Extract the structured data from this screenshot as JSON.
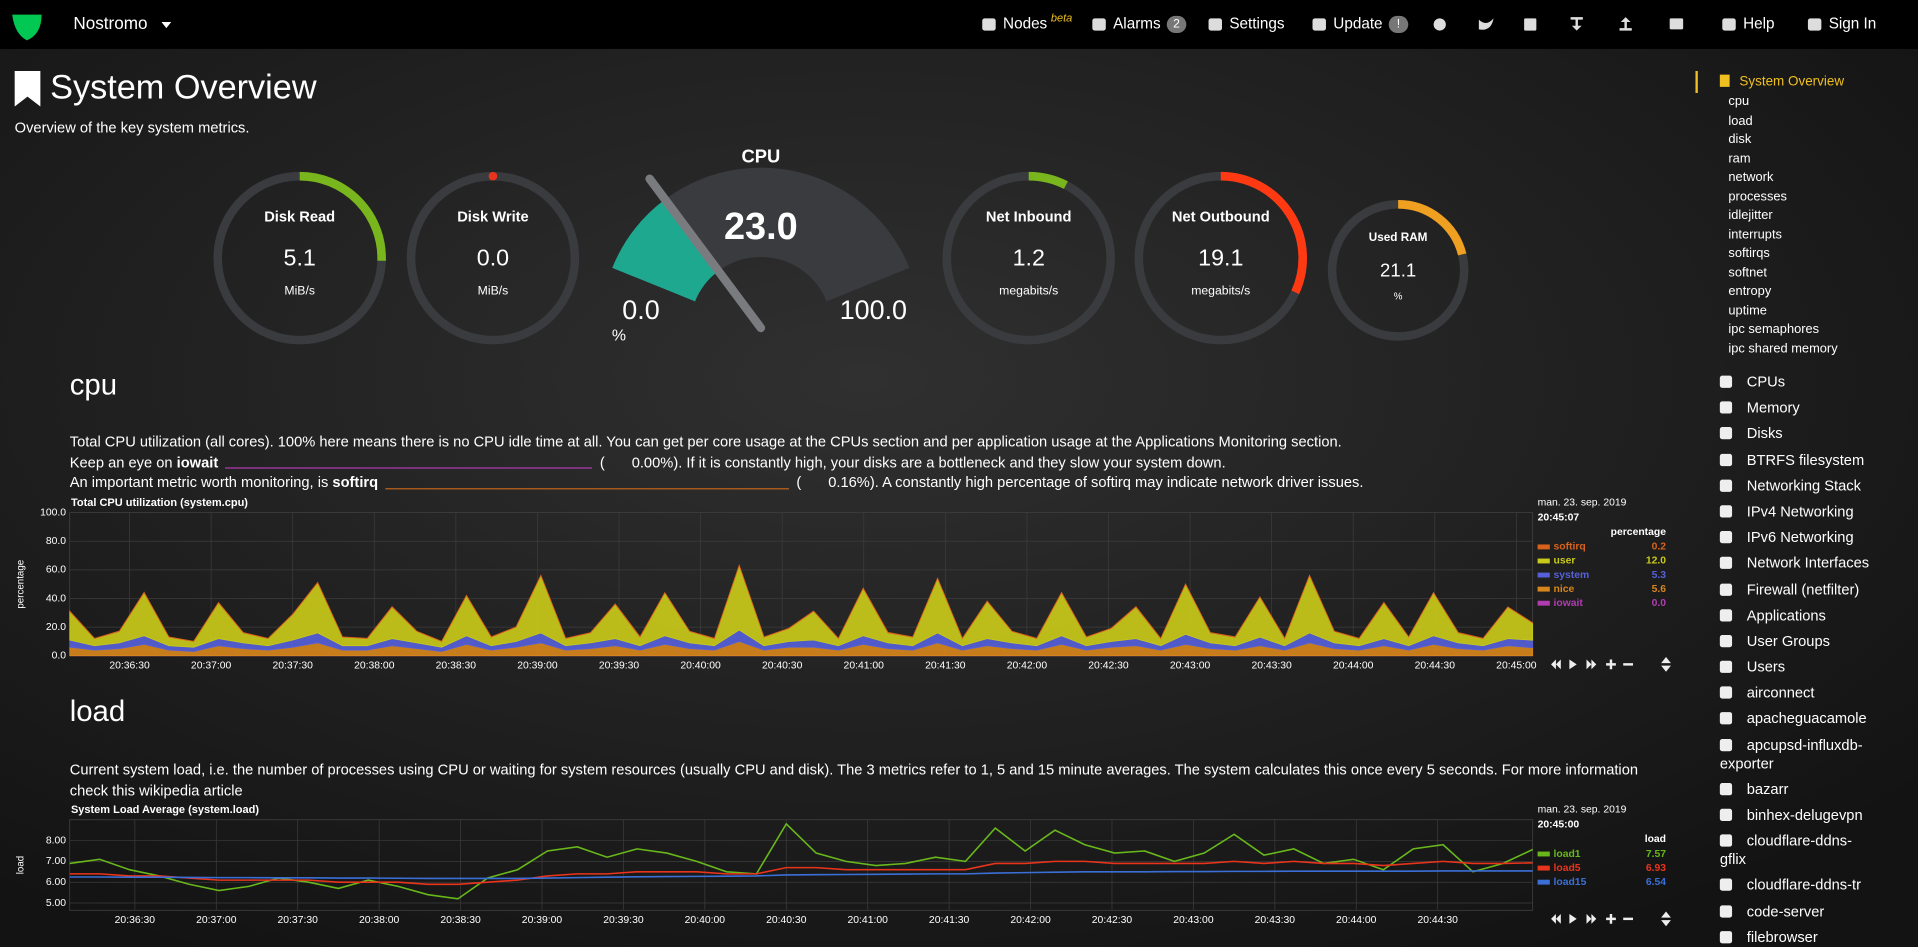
{
  "header": {
    "brand": "Nostromo",
    "nav": [
      {
        "label": "Nodes",
        "badge": "beta"
      },
      {
        "label": "Alarms",
        "badge": "2"
      },
      {
        "label": "Settings"
      },
      {
        "label": "Update",
        "badge": "!"
      },
      {
        "label": "Help"
      },
      {
        "label": "Sign In"
      }
    ]
  },
  "overview": {
    "title": "System Overview",
    "subtitle": "Overview of the key system metrics.",
    "gauges": [
      {
        "title": "Disk Read",
        "value": 5.1,
        "unit": "MiB/s",
        "range": [
          0,
          20
        ],
        "color": "#79b51c"
      },
      {
        "title": "Disk Write",
        "value": 0,
        "value_label": "0.0",
        "unit": "MiB/s",
        "range": [
          0,
          20
        ],
        "color": "#e8341c"
      },
      {
        "title": "Net Inbound",
        "value": 1.2,
        "unit": "megabits/s",
        "range": [
          0,
          16
        ],
        "color": "#79b51c"
      },
      {
        "title": "Net Outbound",
        "value": 19.1,
        "unit": "megabits/s",
        "range": [
          0,
          60
        ],
        "color": "#ff3a12"
      },
      {
        "title": "Used RAM",
        "value": 21.1,
        "unit": "%",
        "range": [
          0,
          100
        ],
        "color": "#f0a020"
      }
    ],
    "cpu_gauge": {
      "title": "CPU",
      "value": 23,
      "value_label": "23.0",
      "unit": "%",
      "range": [
        0,
        100
      ],
      "range_labels": [
        "0.0",
        "100.0"
      ],
      "color": "#1fa890"
    }
  },
  "sections": [
    {
      "title": "cpu",
      "description": {
        "text": "Total CPU utilization (all cores). 100% here means there is no CPU idle time at all. You can get per core usage at the CPUs section and per application usage at the Applications Monitoring section.",
        "iowait": {
          "before": "Keep an eye on ",
          "metric": "iowait",
          "open": "(",
          "value": "0.00%",
          "after": "). If it is constantly high, your disks are a bottleneck and they slow your system down."
        },
        "softirq": {
          "before": "An important metric worth monitoring, is ",
          "metric": "softirq",
          "open": "(",
          "value": "0.16%",
          "after": "). A constantly high percentage of softirq may indicate network driver issues."
        }
      },
      "chart": {
        "type": "area",
        "stacked": true,
        "title": "Total CPU utilization (system.cpu)",
        "ylabel": "percentage",
        "grid": true,
        "ylim": [
          0,
          100
        ],
        "yticks": [
          {
            "value": 0,
            "label": "0.0"
          },
          {
            "value": 20,
            "label": "20.0"
          },
          {
            "value": 40,
            "label": "40.0"
          },
          {
            "value": 60,
            "label": "60.0"
          },
          {
            "value": 80,
            "label": "80.0"
          },
          {
            "value": 100,
            "label": "100.0"
          }
        ],
        "xlim": [
          "20:36:08",
          "20:45:06"
        ],
        "xticks": [
          "20:36:30",
          "20:37:00",
          "20:37:30",
          "20:38:00",
          "20:38:30",
          "20:39:00",
          "20:39:30",
          "20:40:00",
          "20:40:30",
          "20:41:00",
          "20:41:30",
          "20:42:00",
          "20:42:30",
          "20:43:00",
          "20:43:30",
          "20:44:00",
          "20:44:30",
          "20:45:00"
        ],
        "legend": {
          "date": "man. 23. sep. 2019",
          "time": "20:45:07",
          "unit": "percentage"
        },
        "series": [
          {
            "name": "softirq",
            "color": "#d8621c",
            "current": 0.2,
            "values": [
              0.3,
              0.2,
              0.3,
              0.4,
              0.2,
              0.2,
              0.3,
              0.3,
              0.2,
              0.3,
              0.3,
              0.2,
              0.3,
              0.4,
              0.2,
              0.2,
              0.3,
              0.3,
              0.2,
              0.3,
              0.3,
              0.2,
              0.3,
              0.4,
              0.2,
              0.2,
              0.3,
              0.3,
              0.2,
              0.3,
              0.3,
              0.2,
              0.3,
              0.4,
              0.2,
              0.2,
              0.3,
              0.3,
              0.2,
              0.3,
              0.3,
              0.2,
              0.3,
              0.4,
              0.2,
              0.2,
              0.3,
              0.3,
              0.2,
              0.3,
              0.3,
              0.2,
              0.3,
              0.4,
              0.2,
              0.2,
              0.3,
              0.3,
              0.2,
              0.2
            ]
          },
          {
            "name": "user",
            "color": "#c9c91a",
            "current": 12,
            "current_label": "12.0",
            "values": [
              20,
              5,
              8,
              30,
              6,
              4,
              25,
              7,
              5,
              18,
              35,
              6,
              5,
              22,
              8,
              4,
              28,
              6,
              10,
              40,
              5,
              7,
              24,
              6,
              30,
              8,
              5,
              45,
              6,
              9,
              20,
              5,
              33,
              7,
              6,
              38,
              5,
              26,
              8,
              5,
              30,
              6,
              9,
              22,
              5,
              35,
              7,
              6,
              28,
              5,
              40,
              8,
              5,
              25,
              6,
              30,
              7,
              5,
              22,
              12
            ]
          },
          {
            "name": "system",
            "color": "#5560d8",
            "current": 5.3,
            "values": [
              5,
              3,
              4,
              6,
              3,
              3,
              5,
              4,
              3,
              5,
              7,
              3,
              3,
              5,
              4,
              3,
              6,
              3,
              4,
              7,
              3,
              4,
              5,
              3,
              6,
              4,
              3,
              8,
              3,
              4,
              5,
              3,
              6,
              4,
              3,
              7,
              3,
              5,
              4,
              3,
              6,
              3,
              4,
              5,
              3,
              7,
              4,
              3,
              6,
              3,
              7,
              4,
              3,
              5,
              3,
              6,
              4,
              3,
              5,
              5.3
            ]
          },
          {
            "name": "nice",
            "color": "#d6861c",
            "current": 5.6,
            "values": [
              6,
              4,
              5,
              8,
              4,
              3,
              7,
              5,
              4,
              6,
              9,
              4,
              4,
              7,
              5,
              3,
              8,
              4,
              6,
              9,
              4,
              5,
              7,
              4,
              8,
              5,
              4,
              10,
              4,
              6,
              6,
              4,
              8,
              5,
              4,
              9,
              4,
              7,
              5,
              4,
              8,
              4,
              6,
              7,
              4,
              8,
              5,
              4,
              7,
              4,
              9,
              5,
              4,
              7,
              4,
              8,
              5,
              4,
              7,
              5.6
            ]
          },
          {
            "name": "iowait",
            "color": "#b03cb0",
            "current": 0,
            "current_label": "0.0",
            "values": [
              0,
              0,
              0,
              0,
              0,
              0,
              0,
              0,
              0,
              0,
              0,
              0,
              0,
              0,
              0,
              0,
              0,
              0,
              0,
              0,
              0,
              0,
              0,
              0,
              0,
              0,
              0,
              0,
              0,
              0,
              0,
              0,
              0,
              0,
              0,
              0,
              0,
              0,
              0,
              0,
              0,
              0,
              0,
              0,
              0,
              0,
              0,
              0,
              0,
              0,
              0,
              0,
              0,
              0,
              0,
              0,
              0,
              0,
              0,
              0
            ]
          }
        ]
      }
    },
    {
      "title": "load",
      "description": {
        "text": "Current system load, i.e. the number of processes using CPU or waiting for system resources (usually CPU and disk). The 3 metrics refer to 1, 5 and 15 minute averages. The system calculates this once every 5 seconds. For more information check this",
        "link": "wikipedia article"
      },
      "chart": {
        "type": "line",
        "title": "System Load Average (system.load)",
        "ylabel": "load",
        "grid": true,
        "ylim": [
          4.65,
          9.0
        ],
        "yticks": [
          {
            "value": 5,
            "label": "5.00"
          },
          {
            "value": 6,
            "label": "6.00"
          },
          {
            "value": 7,
            "label": "7.00"
          },
          {
            "value": 8,
            "label": "8.00"
          }
        ],
        "xlim": [
          "20:36:06",
          "20:45:05"
        ],
        "xticks": [
          "20:36:30",
          "20:37:00",
          "20:37:30",
          "20:38:00",
          "20:38:30",
          "20:39:00",
          "20:39:30",
          "20:40:00",
          "20:40:30",
          "20:41:00",
          "20:41:30",
          "20:42:00",
          "20:42:30",
          "20:43:00",
          "20:43:30",
          "20:44:00",
          "20:44:30"
        ],
        "legend": {
          "date": "man. 23. sep. 2019",
          "time": "20:45:00",
          "unit": "load"
        },
        "series": [
          {
            "name": "load1",
            "color": "#68b71b",
            "current": 7.57,
            "values": [
              6.9,
              7.1,
              6.6,
              6.3,
              5.9,
              5.6,
              5.8,
              6.2,
              6.0,
              5.7,
              6.1,
              5.8,
              5.4,
              5.2,
              6.2,
              6.6,
              7.5,
              7.7,
              7.2,
              7.6,
              7.4,
              7.0,
              6.5,
              6.4,
              8.8,
              7.4,
              7.0,
              6.8,
              6.9,
              7.2,
              7.0,
              8.6,
              7.5,
              8.5,
              7.8,
              7.4,
              7.5,
              7.0,
              7.4,
              8.3,
              7.3,
              7.6,
              6.9,
              7.1,
              6.6,
              7.6,
              7.8,
              6.5,
              6.9,
              7.57
            ]
          },
          {
            "name": "load5",
            "color": "#e8341c",
            "current": 6.93,
            "values": [
              6.4,
              6.4,
              6.3,
              6.3,
              6.2,
              6.1,
              6.1,
              6.1,
              6.1,
              6.0,
              6.0,
              6.0,
              5.9,
              5.9,
              6.0,
              6.1,
              6.3,
              6.4,
              6.4,
              6.5,
              6.5,
              6.5,
              6.4,
              6.4,
              6.7,
              6.7,
              6.6,
              6.6,
              6.6,
              6.6,
              6.6,
              6.9,
              6.9,
              7.0,
              7.0,
              6.9,
              6.9,
              6.9,
              6.9,
              7.0,
              6.9,
              7.0,
              6.9,
              6.9,
              6.8,
              6.9,
              7.0,
              6.9,
              6.9,
              6.93
            ]
          },
          {
            "name": "load15",
            "color": "#3b6fd8",
            "current": 6.54,
            "values": [
              6.25,
              6.25,
              6.24,
              6.24,
              6.23,
              6.22,
              6.22,
              6.21,
              6.21,
              6.2,
              6.2,
              6.19,
              6.18,
              6.18,
              6.18,
              6.18,
              6.2,
              6.22,
              6.24,
              6.26,
              6.27,
              6.28,
              6.29,
              6.3,
              6.35,
              6.36,
              6.37,
              6.38,
              6.39,
              6.4,
              6.4,
              6.44,
              6.46,
              6.48,
              6.5,
              6.5,
              6.5,
              6.51,
              6.51,
              6.52,
              6.52,
              6.53,
              6.53,
              6.53,
              6.53,
              6.53,
              6.54,
              6.54,
              6.54,
              6.54
            ]
          }
        ]
      }
    }
  ],
  "sidebar": {
    "active": "System Overview",
    "subitems": [
      "cpu",
      "load",
      "disk",
      "ram",
      "network",
      "processes",
      "idlejitter",
      "interrupts",
      "softirqs",
      "softnet",
      "entropy",
      "uptime",
      "ipc semaphores",
      "ipc shared memory"
    ],
    "sections": [
      "CPUs",
      "Memory",
      "Disks",
      "BTRFS filesystem",
      "Networking Stack",
      "IPv4 Networking",
      "IPv6 Networking",
      "Network Interfaces",
      "Firewall (netfilter)",
      "Applications",
      "User Groups",
      "Users",
      "airconnect",
      "apacheguacamole",
      "apcupsd-influxdb-exporter",
      "bazarr",
      "binhex-delugevpn",
      "cloudflare-ddns-gflix",
      "cloudflare-ddns-tr",
      "code-server",
      "filebrowser"
    ]
  }
}
